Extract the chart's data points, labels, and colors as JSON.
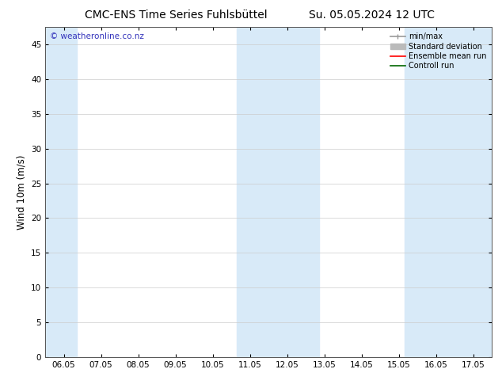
{
  "title_left": "CMC-ENS Time Series Fuhlsbüttel",
  "title_right": "Su. 05.05.2024 12 UTC",
  "ylabel": "Wind 10m (m/s)",
  "watermark": "© weatheronline.co.nz",
  "ylim": [
    0,
    47.5
  ],
  "yticks": [
    0,
    5,
    10,
    15,
    20,
    25,
    30,
    35,
    40,
    45
  ],
  "xtick_labels": [
    "06.05",
    "07.05",
    "08.05",
    "09.05",
    "10.05",
    "11.05",
    "12.05",
    "13.05",
    "14.05",
    "15.05",
    "16.05",
    "17.05"
  ],
  "bg_color": "#ffffff",
  "band_color": "#d8eaf8",
  "legend_entries": [
    {
      "label": "min/max",
      "color": "#999999",
      "lw": 1.2,
      "style": "minmax"
    },
    {
      "label": "Standard deviation",
      "color": "#bbbbbb",
      "lw": 5,
      "style": "std"
    },
    {
      "label": "Ensemble mean run",
      "color": "#ff0000",
      "lw": 1.2,
      "style": "line"
    },
    {
      "label": "Controll run",
      "color": "#006600",
      "lw": 1.2,
      "style": "line"
    }
  ],
  "title_fontsize": 10,
  "tick_fontsize": 7.5,
  "ylabel_fontsize": 8.5,
  "watermark_color": "#3333bb",
  "watermark_fontsize": 7.5,
  "legend_fontsize": 7
}
